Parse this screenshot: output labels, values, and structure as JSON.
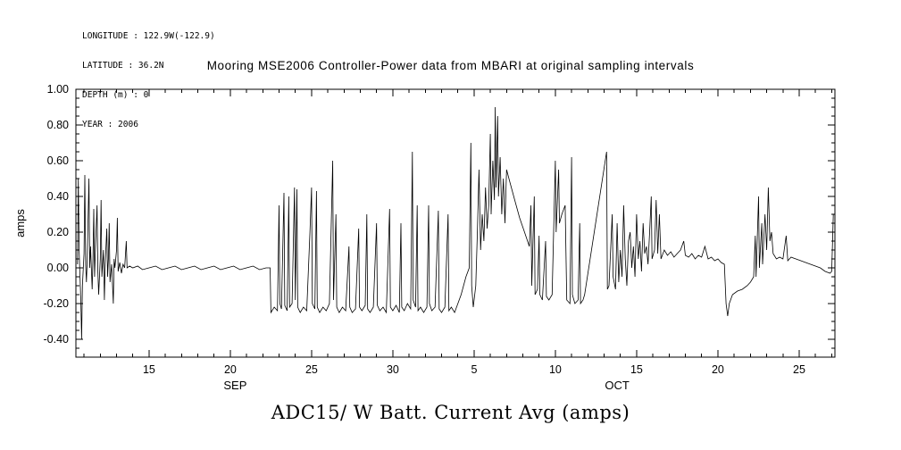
{
  "info": {
    "longitude": "LONGITUDE : 122.9W(-122.9)",
    "latitude": "LATITUDE : 36.2N",
    "depth": "DEPTH (m) : 0",
    "year": "YEAR : 2006"
  },
  "title": "Mooring MSE2006 Controller-Power data from MBARI at original sampling intervals",
  "bottom_title": "ADC15/ W Batt. Current Avg (amps)",
  "ylabel": "amps",
  "colors": {
    "line": "#000000",
    "frame": "#000000",
    "background": "#ffffff"
  },
  "chart_data": {
    "type": "line",
    "title": "Mooring MSE2006 Controller-Power data from MBARI at original sampling intervals",
    "series_name": "ADC15/ W Batt. Current Avg (amps)",
    "ylabel": "amps",
    "x_encoding": "days since Sep 1 2006 (Oct d = 30+d)",
    "xlim": [
      10.5,
      57.2
    ],
    "ylim": [
      -0.5,
      1.0
    ],
    "grid": false,
    "x_ticks": [
      {
        "day": 15,
        "label": "15"
      },
      {
        "day": 20,
        "label": "20"
      },
      {
        "day": 25,
        "label": "25"
      },
      {
        "day": 30,
        "label": "30"
      },
      {
        "day": 35,
        "label": "5"
      },
      {
        "day": 40,
        "label": "10"
      },
      {
        "day": 45,
        "label": "15"
      },
      {
        "day": 50,
        "label": "20"
      },
      {
        "day": 55,
        "label": "25"
      }
    ],
    "month_labels": [
      {
        "label": "SEP",
        "day": 20.3
      },
      {
        "label": "OCT",
        "day": 43.8
      }
    ],
    "y_ticks": [
      {
        "value": 1.0,
        "label": "1.00"
      },
      {
        "value": 0.8,
        "label": "0.80"
      },
      {
        "value": 0.6,
        "label": "0.60"
      },
      {
        "value": 0.4,
        "label": "0.40"
      },
      {
        "value": 0.2,
        "label": "0.20"
      },
      {
        "value": 0.0,
        "label": "0.00"
      },
      {
        "value": -0.2,
        "label": "-0.20"
      },
      {
        "value": -0.4,
        "label": "-0.40"
      }
    ],
    "points": [
      [
        10.6,
        0.02
      ],
      [
        10.65,
        0.5
      ],
      [
        10.7,
        0.1
      ],
      [
        10.75,
        -0.05
      ],
      [
        10.8,
        -0.18
      ],
      [
        10.85,
        -0.4
      ],
      [
        10.9,
        -0.1
      ],
      [
        11.0,
        0.08
      ],
      [
        11.05,
        0.52
      ],
      [
        11.1,
        0.02
      ],
      [
        11.15,
        -0.08
      ],
      [
        11.2,
        0.05
      ],
      [
        11.3,
        0.5
      ],
      [
        11.35,
        0.0
      ],
      [
        11.4,
        0.12
      ],
      [
        11.5,
        -0.12
      ],
      [
        11.55,
        0.05
      ],
      [
        11.6,
        0.33
      ],
      [
        11.65,
        -0.05
      ],
      [
        11.7,
        0.1
      ],
      [
        11.8,
        0.35
      ],
      [
        11.85,
        -0.02
      ],
      [
        11.9,
        -0.15
      ],
      [
        12.0,
        0.05
      ],
      [
        12.05,
        0.38
      ],
      [
        12.1,
        -0.05
      ],
      [
        12.2,
        0.1
      ],
      [
        12.25,
        -0.18
      ],
      [
        12.3,
        0.02
      ],
      [
        12.4,
        0.22
      ],
      [
        12.45,
        -0.05
      ],
      [
        12.5,
        0.05
      ],
      [
        12.55,
        0.25
      ],
      [
        12.6,
        -0.08
      ],
      [
        12.7,
        0.02
      ],
      [
        12.8,
        -0.2
      ],
      [
        12.85,
        0.05
      ],
      [
        12.9,
        0.0
      ],
      [
        13.0,
        0.1
      ],
      [
        13.05,
        0.28
      ],
      [
        13.1,
        -0.02
      ],
      [
        13.2,
        0.03
      ],
      [
        13.3,
        -0.03
      ],
      [
        13.4,
        0.02
      ],
      [
        13.5,
        0.0
      ],
      [
        13.6,
        0.15
      ],
      [
        13.65,
        0.0
      ],
      [
        13.8,
        0.01
      ],
      [
        14.0,
        0.0
      ],
      [
        14.3,
        0.01
      ],
      [
        14.6,
        -0.01
      ],
      [
        15.0,
        0.0
      ],
      [
        15.4,
        0.01
      ],
      [
        15.8,
        -0.01
      ],
      [
        16.2,
        0.0
      ],
      [
        16.6,
        0.01
      ],
      [
        17.0,
        -0.01
      ],
      [
        17.4,
        0.0
      ],
      [
        17.8,
        0.01
      ],
      [
        18.2,
        -0.01
      ],
      [
        18.6,
        0.0
      ],
      [
        19.0,
        0.01
      ],
      [
        19.4,
        -0.01
      ],
      [
        19.8,
        0.0
      ],
      [
        20.2,
        0.01
      ],
      [
        20.6,
        -0.01
      ],
      [
        21.0,
        0.0
      ],
      [
        21.4,
        0.01
      ],
      [
        21.8,
        -0.01
      ],
      [
        22.2,
        0.0
      ],
      [
        22.45,
        0.0
      ],
      [
        22.5,
        -0.25
      ],
      [
        22.7,
        -0.22
      ],
      [
        22.9,
        -0.24
      ],
      [
        23.0,
        0.35
      ],
      [
        23.05,
        -0.2
      ],
      [
        23.15,
        -0.23
      ],
      [
        23.3,
        0.42
      ],
      [
        23.35,
        -0.21
      ],
      [
        23.5,
        -0.24
      ],
      [
        23.6,
        0.4
      ],
      [
        23.65,
        -0.22
      ],
      [
        23.8,
        -0.2
      ],
      [
        23.95,
        0.45
      ],
      [
        24.0,
        -0.18
      ],
      [
        24.1,
        0.44
      ],
      [
        24.15,
        -0.22
      ],
      [
        24.3,
        -0.25
      ],
      [
        24.5,
        -0.22
      ],
      [
        24.7,
        -0.24
      ],
      [
        24.9,
        0.2
      ],
      [
        25.0,
        0.45
      ],
      [
        25.05,
        -0.2
      ],
      [
        25.2,
        -0.23
      ],
      [
        25.3,
        0.43
      ],
      [
        25.35,
        -0.22
      ],
      [
        25.5,
        -0.25
      ],
      [
        25.7,
        -0.22
      ],
      [
        25.9,
        -0.24
      ],
      [
        26.1,
        -0.2
      ],
      [
        26.3,
        0.6
      ],
      [
        26.35,
        -0.18
      ],
      [
        26.5,
        0.3
      ],
      [
        26.55,
        -0.22
      ],
      [
        26.7,
        -0.25
      ],
      [
        26.9,
        -0.22
      ],
      [
        27.1,
        -0.24
      ],
      [
        27.3,
        0.12
      ],
      [
        27.35,
        -0.22
      ],
      [
        27.5,
        -0.25
      ],
      [
        27.7,
        -0.23
      ],
      [
        27.9,
        0.22
      ],
      [
        27.95,
        -0.22
      ],
      [
        28.1,
        -0.24
      ],
      [
        28.3,
        -0.21
      ],
      [
        28.4,
        0.3
      ],
      [
        28.45,
        -0.23
      ],
      [
        28.6,
        -0.25
      ],
      [
        28.8,
        -0.22
      ],
      [
        29.0,
        0.25
      ],
      [
        29.05,
        -0.21
      ],
      [
        29.2,
        -0.24
      ],
      [
        29.4,
        -0.22
      ],
      [
        29.6,
        -0.25
      ],
      [
        29.8,
        0.33
      ],
      [
        29.85,
        -0.22
      ],
      [
        30.0,
        -0.24
      ],
      [
        30.2,
        -0.21
      ],
      [
        30.4,
        -0.25
      ],
      [
        30.5,
        0.25
      ],
      [
        30.55,
        -0.22
      ],
      [
        30.7,
        -0.24
      ],
      [
        30.9,
        -0.2
      ],
      [
        31.1,
        -0.23
      ],
      [
        31.2,
        0.65
      ],
      [
        31.25,
        -0.18
      ],
      [
        31.4,
        -0.22
      ],
      [
        31.5,
        0.35
      ],
      [
        31.55,
        -0.24
      ],
      [
        31.7,
        -0.22
      ],
      [
        31.9,
        -0.25
      ],
      [
        32.1,
        -0.22
      ],
      [
        32.2,
        0.35
      ],
      [
        32.25,
        -0.2
      ],
      [
        32.4,
        -0.24
      ],
      [
        32.6,
        -0.22
      ],
      [
        32.8,
        0.32
      ],
      [
        32.85,
        -0.23
      ],
      [
        33.0,
        -0.25
      ],
      [
        33.2,
        -0.22
      ],
      [
        33.4,
        0.3
      ],
      [
        33.45,
        -0.24
      ],
      [
        33.6,
        -0.22
      ],
      [
        33.8,
        -0.25
      ],
      [
        34.2,
        -0.15
      ],
      [
        34.5,
        -0.05
      ],
      [
        34.7,
        0.0
      ],
      [
        34.8,
        0.7
      ],
      [
        34.85,
        -0.1
      ],
      [
        34.95,
        -0.22
      ],
      [
        35.1,
        -0.1
      ],
      [
        35.2,
        0.2
      ],
      [
        35.3,
        0.55
      ],
      [
        35.4,
        0.1
      ],
      [
        35.5,
        0.3
      ],
      [
        35.6,
        0.15
      ],
      [
        35.7,
        0.45
      ],
      [
        35.8,
        0.22
      ],
      [
        35.9,
        0.35
      ],
      [
        36.0,
        0.75
      ],
      [
        36.05,
        0.3
      ],
      [
        36.15,
        0.6
      ],
      [
        36.25,
        0.38
      ],
      [
        36.3,
        0.9
      ],
      [
        36.35,
        0.45
      ],
      [
        36.45,
        0.85
      ],
      [
        36.5,
        0.4
      ],
      [
        36.6,
        0.62
      ],
      [
        36.7,
        0.3
      ],
      [
        36.8,
        0.5
      ],
      [
        36.9,
        0.25
      ],
      [
        37.0,
        0.55
      ],
      [
        37.2,
        0.48
      ],
      [
        37.5,
        0.38
      ],
      [
        37.8,
        0.28
      ],
      [
        38.1,
        0.2
      ],
      [
        38.4,
        0.12
      ],
      [
        38.5,
        0.35
      ],
      [
        38.55,
        -0.1
      ],
      [
        38.7,
        0.4
      ],
      [
        38.75,
        -0.15
      ],
      [
        38.9,
        -0.12
      ],
      [
        39.0,
        0.18
      ],
      [
        39.05,
        -0.15
      ],
      [
        39.2,
        -0.18
      ],
      [
        39.4,
        0.15
      ],
      [
        39.45,
        -0.16
      ],
      [
        39.6,
        -0.18
      ],
      [
        39.8,
        -0.15
      ],
      [
        40.0,
        0.6
      ],
      [
        40.05,
        0.2
      ],
      [
        40.2,
        0.55
      ],
      [
        40.25,
        0.25
      ],
      [
        40.4,
        0.3
      ],
      [
        40.6,
        0.35
      ],
      [
        40.7,
        -0.18
      ],
      [
        40.9,
        -0.2
      ],
      [
        41.0,
        0.62
      ],
      [
        41.05,
        -0.15
      ],
      [
        41.2,
        -0.2
      ],
      [
        41.4,
        -0.18
      ],
      [
        41.5,
        0.25
      ],
      [
        41.55,
        -0.2
      ],
      [
        41.7,
        -0.18
      ],
      [
        41.8,
        -0.15
      ],
      [
        43.1,
        0.62
      ],
      [
        43.15,
        0.65
      ],
      [
        43.2,
        -0.12
      ],
      [
        43.3,
        -0.1
      ],
      [
        43.5,
        0.3
      ],
      [
        43.55,
        -0.05
      ],
      [
        43.7,
        -0.12
      ],
      [
        43.8,
        0.25
      ],
      [
        43.9,
        -0.08
      ],
      [
        44.0,
        0.1
      ],
      [
        44.1,
        -0.05
      ],
      [
        44.2,
        0.35
      ],
      [
        44.3,
        0.05
      ],
      [
        44.4,
        -0.1
      ],
      [
        44.5,
        0.15
      ],
      [
        44.6,
        0.2
      ],
      [
        44.7,
        0.0
      ],
      [
        44.8,
        0.12
      ],
      [
        44.9,
        -0.05
      ],
      [
        45.0,
        0.3
      ],
      [
        45.1,
        0.05
      ],
      [
        45.2,
        0.15
      ],
      [
        45.3,
        -0.02
      ],
      [
        45.4,
        0.25
      ],
      [
        45.5,
        0.08
      ],
      [
        45.6,
        0.12
      ],
      [
        45.7,
        0.02
      ],
      [
        45.8,
        0.2
      ],
      [
        45.9,
        0.4
      ],
      [
        45.95,
        0.05
      ],
      [
        46.1,
        0.1
      ],
      [
        46.2,
        0.38
      ],
      [
        46.3,
        0.08
      ],
      [
        46.4,
        0.3
      ],
      [
        46.5,
        0.05
      ],
      [
        46.7,
        0.1
      ],
      [
        46.9,
        0.07
      ],
      [
        47.1,
        0.09
      ],
      [
        47.3,
        0.06
      ],
      [
        47.5,
        0.08
      ],
      [
        47.7,
        0.1
      ],
      [
        47.9,
        0.15
      ],
      [
        48.0,
        0.07
      ],
      [
        48.2,
        0.06
      ],
      [
        48.4,
        0.08
      ],
      [
        48.6,
        0.05
      ],
      [
        48.8,
        0.07
      ],
      [
        49.0,
        0.06
      ],
      [
        49.2,
        0.12
      ],
      [
        49.4,
        0.05
      ],
      [
        49.6,
        0.06
      ],
      [
        49.8,
        0.04
      ],
      [
        50.0,
        0.05
      ],
      [
        50.2,
        0.03
      ],
      [
        50.4,
        0.02
      ],
      [
        50.5,
        -0.2
      ],
      [
        50.6,
        -0.27
      ],
      [
        50.7,
        -0.2
      ],
      [
        50.9,
        -0.15
      ],
      [
        51.2,
        -0.13
      ],
      [
        51.5,
        -0.12
      ],
      [
        51.8,
        -0.1
      ],
      [
        52.0,
        -0.08
      ],
      [
        52.2,
        -0.05
      ],
      [
        52.3,
        0.18
      ],
      [
        52.35,
        -0.05
      ],
      [
        52.5,
        0.4
      ],
      [
        52.55,
        0.0
      ],
      [
        52.7,
        0.25
      ],
      [
        52.75,
        0.02
      ],
      [
        52.9,
        0.3
      ],
      [
        53.0,
        0.1
      ],
      [
        53.1,
        0.45
      ],
      [
        53.2,
        0.15
      ],
      [
        53.3,
        0.2
      ],
      [
        53.4,
        0.08
      ],
      [
        53.6,
        0.05
      ],
      [
        53.8,
        0.06
      ],
      [
        54.0,
        0.05
      ],
      [
        54.2,
        0.18
      ],
      [
        54.3,
        0.04
      ],
      [
        54.5,
        0.06
      ],
      [
        54.8,
        0.05
      ],
      [
        55.1,
        0.04
      ],
      [
        55.4,
        0.03
      ],
      [
        55.7,
        0.02
      ],
      [
        56.0,
        0.01
      ],
      [
        56.3,
        0.0
      ],
      [
        56.6,
        -0.02
      ],
      [
        56.9,
        -0.03
      ],
      [
        57.0,
        -0.02
      ],
      [
        57.1,
        0.3
      ]
    ]
  }
}
